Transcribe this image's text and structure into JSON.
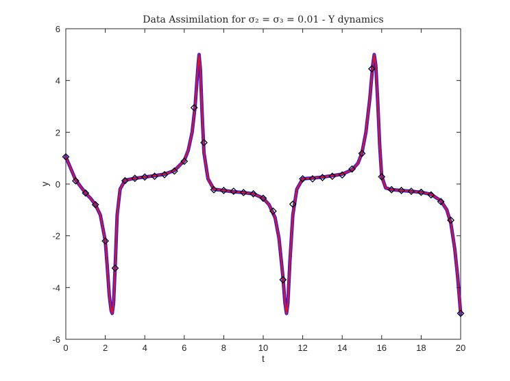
{
  "chart_data": {
    "type": "line",
    "title": "Data Assimilation for σ₂ = σ₃ = 0.01 - Y dynamics",
    "xlabel": "t",
    "ylabel": "y",
    "xlim": [
      0,
      20
    ],
    "ylim": [
      -6,
      6
    ],
    "xticks": [
      0,
      2,
      4,
      6,
      8,
      10,
      12,
      14,
      16,
      18,
      20
    ],
    "yticks": [
      -6,
      -4,
      -2,
      0,
      2,
      4,
      6
    ],
    "grid": false,
    "legend": "none",
    "series": [
      {
        "kind": "line",
        "color": "#2020ff",
        "x": [
          0,
          0.25,
          0.5,
          0.75,
          1,
          1.25,
          1.5,
          1.75,
          2,
          2.1,
          2.2,
          2.3,
          2.35,
          2.42,
          2.5,
          2.6,
          2.75,
          3,
          3.5,
          4,
          4.5,
          5,
          5.5,
          6,
          6.2,
          6.4,
          6.55,
          6.7,
          6.75,
          6.82,
          6.9,
          7,
          7.2,
          7.5,
          8,
          8.5,
          9,
          9.5,
          10,
          10.3,
          10.6,
          10.8,
          11,
          11.1,
          11.18,
          11.25,
          11.35,
          11.5,
          11.7,
          12,
          12.5,
          13,
          13.5,
          14,
          14.5,
          14.8,
          15,
          15.2,
          15.4,
          15.55,
          15.62,
          15.7,
          15.8,
          15.9,
          16,
          16.2,
          16.5,
          17,
          17.5,
          18,
          18.5,
          19,
          19.3,
          19.5,
          19.7,
          19.85,
          20
        ],
        "y": [
          1.05,
          0.6,
          0.15,
          -0.1,
          -0.35,
          -0.55,
          -0.8,
          -1.2,
          -2.2,
          -3.2,
          -4.3,
          -4.9,
          -5.0,
          -4.6,
          -3.2,
          -1.2,
          -0.2,
          0.15,
          0.22,
          0.27,
          0.32,
          0.38,
          0.52,
          0.9,
          1.3,
          2.0,
          3.0,
          4.6,
          5.0,
          4.4,
          2.8,
          1.2,
          0.2,
          -0.2,
          -0.25,
          -0.3,
          -0.33,
          -0.38,
          -0.55,
          -0.8,
          -1.3,
          -2.1,
          -3.6,
          -4.6,
          -5.0,
          -4.6,
          -3.0,
          -1.2,
          -0.2,
          0.2,
          0.23,
          0.27,
          0.32,
          0.38,
          0.55,
          0.8,
          1.2,
          2.0,
          3.3,
          4.6,
          5.0,
          4.6,
          3.2,
          1.5,
          0.3,
          -0.15,
          -0.22,
          -0.25,
          -0.28,
          -0.32,
          -0.4,
          -0.65,
          -1.0,
          -1.5,
          -2.5,
          -3.6,
          -5.0
        ]
      },
      {
        "kind": "line",
        "color": "#e8101a",
        "x": [
          0,
          0.25,
          0.5,
          0.75,
          1,
          1.25,
          1.5,
          1.75,
          2,
          2.1,
          2.2,
          2.3,
          2.35,
          2.42,
          2.5,
          2.6,
          2.75,
          3,
          3.5,
          4,
          4.5,
          5,
          5.5,
          6,
          6.2,
          6.4,
          6.55,
          6.7,
          6.75,
          6.82,
          6.9,
          7,
          7.2,
          7.5,
          8,
          8.5,
          9,
          9.5,
          10,
          10.3,
          10.6,
          10.8,
          11,
          11.1,
          11.18,
          11.25,
          11.35,
          11.5,
          11.7,
          12,
          12.5,
          13,
          13.5,
          14,
          14.5,
          14.8,
          15,
          15.2,
          15.4,
          15.55,
          15.62,
          15.7,
          15.8,
          15.9,
          16,
          16.2,
          16.5,
          17,
          17.5,
          18,
          18.5,
          19,
          19.3,
          19.5,
          19.7,
          19.85,
          20
        ],
        "y": [
          1.05,
          0.6,
          0.15,
          -0.1,
          -0.35,
          -0.55,
          -0.8,
          -1.2,
          -2.2,
          -3.2,
          -4.3,
          -4.9,
          -5.0,
          -4.6,
          -3.2,
          -1.2,
          -0.2,
          0.15,
          0.22,
          0.27,
          0.32,
          0.38,
          0.52,
          0.9,
          1.3,
          2.0,
          3.0,
          4.6,
          5.0,
          4.4,
          2.8,
          1.2,
          0.2,
          -0.2,
          -0.25,
          -0.3,
          -0.33,
          -0.38,
          -0.55,
          -0.8,
          -1.3,
          -2.1,
          -3.6,
          -4.6,
          -5.0,
          -4.6,
          -3.0,
          -1.2,
          -0.2,
          0.2,
          0.23,
          0.27,
          0.32,
          0.38,
          0.55,
          0.8,
          1.2,
          2.0,
          3.3,
          4.6,
          5.0,
          4.6,
          3.2,
          1.5,
          0.3,
          -0.15,
          -0.22,
          -0.25,
          -0.28,
          -0.32,
          -0.4,
          -0.65,
          -1.0,
          -1.5,
          -2.5,
          -3.6,
          -5.0
        ]
      },
      {
        "kind": "scatter",
        "marker": "diamond",
        "color": "#000000",
        "x": [
          0,
          0.5,
          1,
          1.5,
          2,
          2.5,
          3,
          3.5,
          4,
          4.5,
          5,
          5.5,
          6,
          6.5,
          7,
          7.5,
          8,
          8.5,
          9,
          9.5,
          10,
          10.5,
          11,
          11.5,
          12,
          12.5,
          13,
          13.5,
          14,
          14.5,
          15,
          15.5,
          16,
          16.5,
          17,
          17.5,
          18,
          18.5,
          19,
          19.5,
          20
        ],
        "y": [
          1.05,
          0.12,
          -0.35,
          -0.8,
          -2.2,
          -3.25,
          0.13,
          0.22,
          0.27,
          0.3,
          0.36,
          0.5,
          0.88,
          2.95,
          1.6,
          -0.22,
          -0.25,
          -0.28,
          -0.33,
          -0.38,
          -0.55,
          -1.05,
          -3.7,
          -0.78,
          0.2,
          0.2,
          0.25,
          0.3,
          0.35,
          0.58,
          1.18,
          4.45,
          0.28,
          -0.22,
          -0.25,
          -0.28,
          -0.32,
          -0.42,
          -0.68,
          -1.4,
          -5.0
        ]
      }
    ]
  }
}
